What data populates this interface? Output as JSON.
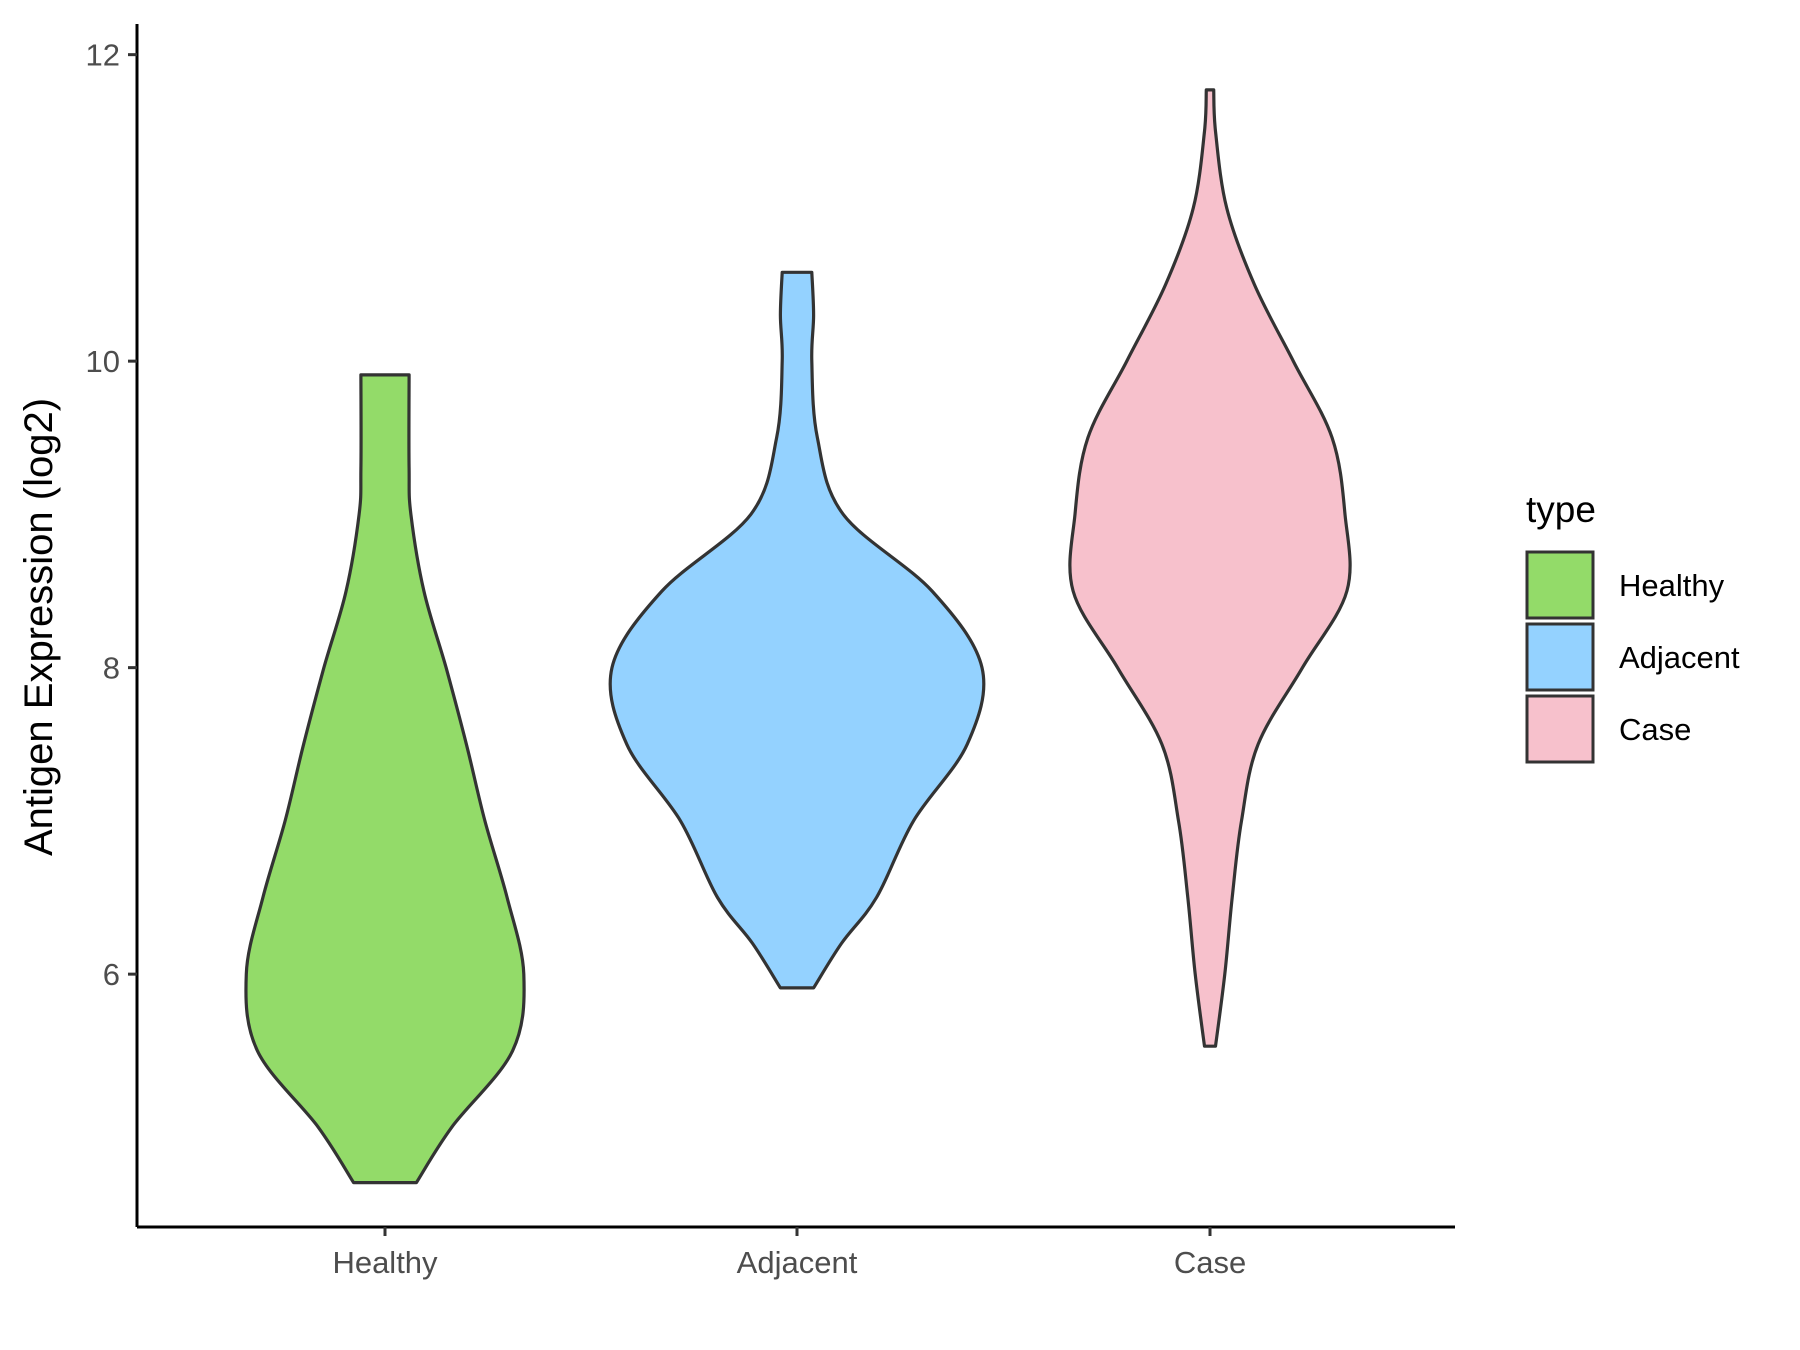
{
  "chart_data": {
    "type": "violin",
    "categories": [
      "Healthy",
      "Adjacent",
      "Case"
    ],
    "ylabel": "Antigen Expression (log2)",
    "xlabel": "",
    "ylim": [
      4.35,
      12.2
    ],
    "y_ticks": [
      6,
      8,
      10,
      12
    ],
    "y_tick_labels": [
      "6",
      "8",
      "10",
      "12"
    ],
    "legend": {
      "title": "type",
      "position": "right",
      "entries": [
        "Healthy",
        "Adjacent",
        "Case"
      ]
    },
    "grid": false,
    "series": [
      {
        "name": "Healthy",
        "color": "#93DB69",
        "min": 4.64,
        "max": 9.91,
        "density_profile": [
          [
            4.64,
            0.17
          ],
          [
            5.0,
            0.36
          ],
          [
            5.5,
            0.69
          ],
          [
            6.0,
            0.75
          ],
          [
            6.5,
            0.66
          ],
          [
            7.0,
            0.54
          ],
          [
            7.5,
            0.44
          ],
          [
            8.0,
            0.33
          ],
          [
            8.5,
            0.21
          ],
          [
            9.0,
            0.14
          ],
          [
            9.3,
            0.13
          ],
          [
            9.91,
            0.13
          ]
        ]
      },
      {
        "name": "Adjacent",
        "color": "#94D2FF",
        "min": 5.91,
        "max": 10.58,
        "density_profile": [
          [
            5.91,
            0.09
          ],
          [
            6.2,
            0.24
          ],
          [
            6.5,
            0.43
          ],
          [
            7.0,
            0.63
          ],
          [
            7.5,
            0.92
          ],
          [
            8.0,
            1.0
          ],
          [
            8.5,
            0.73
          ],
          [
            9.0,
            0.25
          ],
          [
            9.5,
            0.11
          ],
          [
            10.0,
            0.08
          ],
          [
            10.3,
            0.09
          ],
          [
            10.58,
            0.08
          ]
        ]
      },
      {
        "name": "Case",
        "color": "#F7C1CC",
        "min": 5.53,
        "max": 11.77,
        "density_profile": [
          [
            5.53,
            0.03
          ],
          [
            6.0,
            0.08
          ],
          [
            6.5,
            0.12
          ],
          [
            7.0,
            0.17
          ],
          [
            7.5,
            0.26
          ],
          [
            8.0,
            0.5
          ],
          [
            8.5,
            0.74
          ],
          [
            9.0,
            0.73
          ],
          [
            9.5,
            0.66
          ],
          [
            10.0,
            0.45
          ],
          [
            10.5,
            0.24
          ],
          [
            11.0,
            0.09
          ],
          [
            11.5,
            0.03
          ],
          [
            11.77,
            0.02
          ]
        ]
      }
    ]
  }
}
